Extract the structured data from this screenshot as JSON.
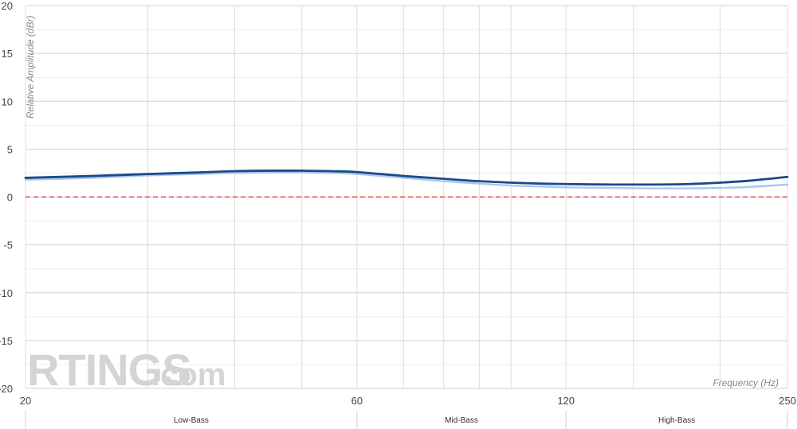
{
  "chart_data": {
    "type": "line",
    "xlabel": "Frequency (Hz)",
    "ylabel": "Relative Amplitude (dBr)",
    "x_scale": "log",
    "xlim": [
      20,
      250
    ],
    "ylim": [
      -20,
      20
    ],
    "x_ticks": [
      20,
      60,
      120,
      250
    ],
    "y_ticks": [
      20,
      15,
      10,
      5,
      0,
      -5,
      -10,
      -15,
      -20
    ],
    "grid": true,
    "reference_line": {
      "y": 0,
      "color": "#e8423a",
      "style": "dashed"
    },
    "bands": [
      {
        "label": "Low-Bass",
        "from": 20,
        "to": 60
      },
      {
        "label": "Mid-Bass",
        "from": 60,
        "to": 120
      },
      {
        "label": "High-Bass",
        "from": 120,
        "to": 250
      }
    ],
    "series": [
      {
        "color": "#1a4a8a",
        "x": [
          20,
          25,
          30,
          35,
          40,
          45,
          50,
          55,
          60,
          70,
          80,
          90,
          100,
          110,
          120,
          140,
          160,
          180,
          200,
          220,
          250
        ],
        "y": [
          2.0,
          2.2,
          2.4,
          2.55,
          2.7,
          2.75,
          2.75,
          2.7,
          2.6,
          2.2,
          1.9,
          1.65,
          1.5,
          1.4,
          1.35,
          1.3,
          1.3,
          1.35,
          1.5,
          1.7,
          2.1
        ]
      },
      {
        "color": "#a9c8ec",
        "x": [
          20,
          25,
          30,
          35,
          40,
          45,
          50,
          55,
          60,
          70,
          80,
          90,
          100,
          110,
          120,
          140,
          160,
          180,
          200,
          220,
          250
        ],
        "y": [
          1.8,
          2.0,
          2.25,
          2.4,
          2.5,
          2.55,
          2.55,
          2.5,
          2.4,
          2.0,
          1.65,
          1.4,
          1.2,
          1.1,
          1.0,
          0.95,
          0.9,
          0.9,
          0.95,
          1.05,
          1.3
        ]
      }
    ]
  },
  "watermark": {
    "brand": "RTINGS",
    "suffix": ".com"
  }
}
